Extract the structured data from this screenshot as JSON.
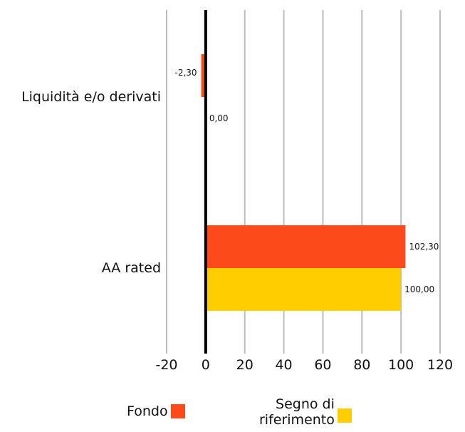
{
  "chart_data": {
    "type": "bar",
    "orientation": "horizontal",
    "categories": [
      "Liquidità e/o derivati",
      "AA rated"
    ],
    "series": [
      {
        "name": "Fondo",
        "values": [
          -2.3,
          102.3
        ],
        "labels": [
          "-2,30",
          "102,30"
        ],
        "color": "#FC4A1A"
      },
      {
        "name": "Segno di riferimento",
        "values": [
          0.0,
          100.0
        ],
        "labels": [
          "0,00",
          "100,00"
        ],
        "color": "#FFCD00"
      }
    ],
    "xlim": [
      -20,
      120
    ],
    "xticks": [
      -20,
      0,
      20,
      40,
      60,
      80,
      100,
      120
    ],
    "grid": true,
    "legend_position": "bottom"
  },
  "legend": {
    "fondo": "Fondo",
    "segno_line1": "Segno di",
    "segno_line2": "riferimento"
  }
}
